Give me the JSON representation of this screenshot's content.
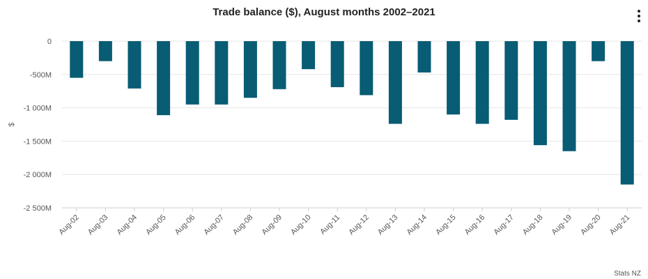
{
  "chart_data": {
    "type": "bar",
    "title": "Trade balance ($), August months 2002–2021",
    "ylabel": "$",
    "xlabel": "",
    "categories": [
      "Aug-02",
      "Aug-03",
      "Aug-04",
      "Aug-05",
      "Aug-06",
      "Aug-07",
      "Aug-08",
      "Aug-09",
      "Aug-10",
      "Aug-11",
      "Aug-12",
      "Aug-13",
      "Aug-14",
      "Aug-15",
      "Aug-16",
      "Aug-17",
      "Aug-18",
      "Aug-19",
      "Aug-20",
      "Aug-21"
    ],
    "series": [
      {
        "name": "Trade balance",
        "values": [
          -550,
          -300,
          -710,
          -1110,
          -950,
          -950,
          -850,
          -720,
          -420,
          -690,
          -810,
          -1240,
          -470,
          -1100,
          -1240,
          -1180,
          -1560,
          -1650,
          -300,
          -2150
        ]
      }
    ],
    "y_ticks": [
      0,
      -500,
      -1000,
      -1500,
      -2000,
      -2500
    ],
    "y_tick_labels": [
      "0",
      "-500M",
      "-1 000M",
      "-1 500M",
      "-2 000M",
      "-2 500M"
    ],
    "ylim": [
      -2500,
      0
    ],
    "unit": "$ millions",
    "grid": true,
    "color": "#085c74"
  },
  "credit": "Stats NZ"
}
